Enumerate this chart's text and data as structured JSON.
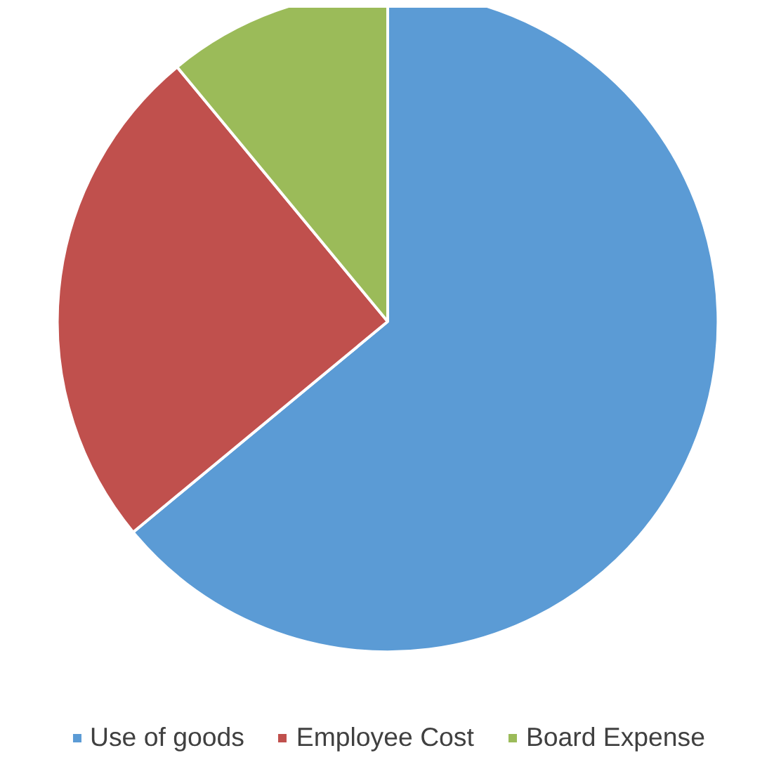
{
  "chart_data": {
    "type": "pie",
    "categories": [
      "Use of goods",
      "Employee Cost",
      "Board Expense"
    ],
    "values": [
      64,
      25,
      11
    ],
    "colors": [
      "#5b9bd5",
      "#c0504d",
      "#9bbb59"
    ],
    "legend": "bottom"
  }
}
